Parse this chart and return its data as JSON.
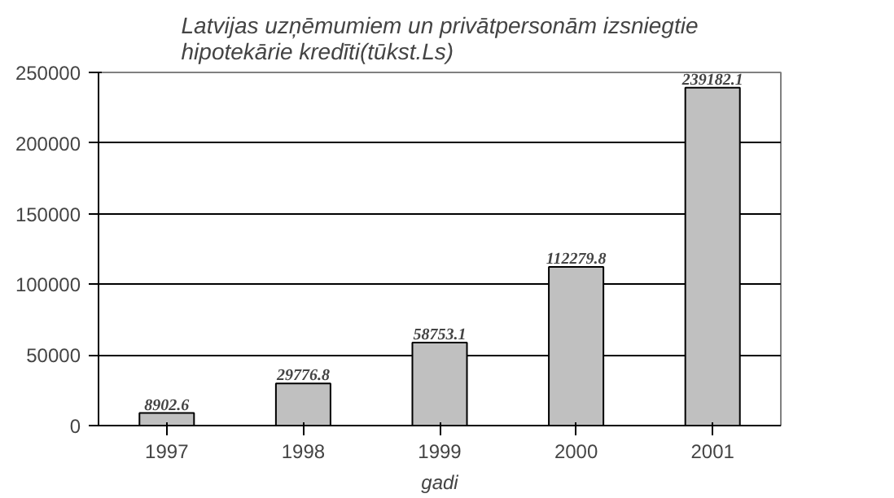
{
  "chart_data": {
    "type": "bar",
    "title": "Latvijas uzņēmumiem un privātpersonām izsniegtie\nhipotekārie kredīti(tūkst.Ls)",
    "xlabel": "gadi",
    "categories": [
      "1997",
      "1998",
      "1999",
      "2000",
      "2001"
    ],
    "values": [
      8902.6,
      29776.8,
      58753.1,
      112279.8,
      239182.1
    ],
    "color": "#c0c0c0",
    "ylim": [
      0,
      250000
    ],
    "yticks": [
      0,
      50000,
      100000,
      150000,
      200000,
      250000
    ],
    "grid": "y",
    "data_labels": true
  }
}
